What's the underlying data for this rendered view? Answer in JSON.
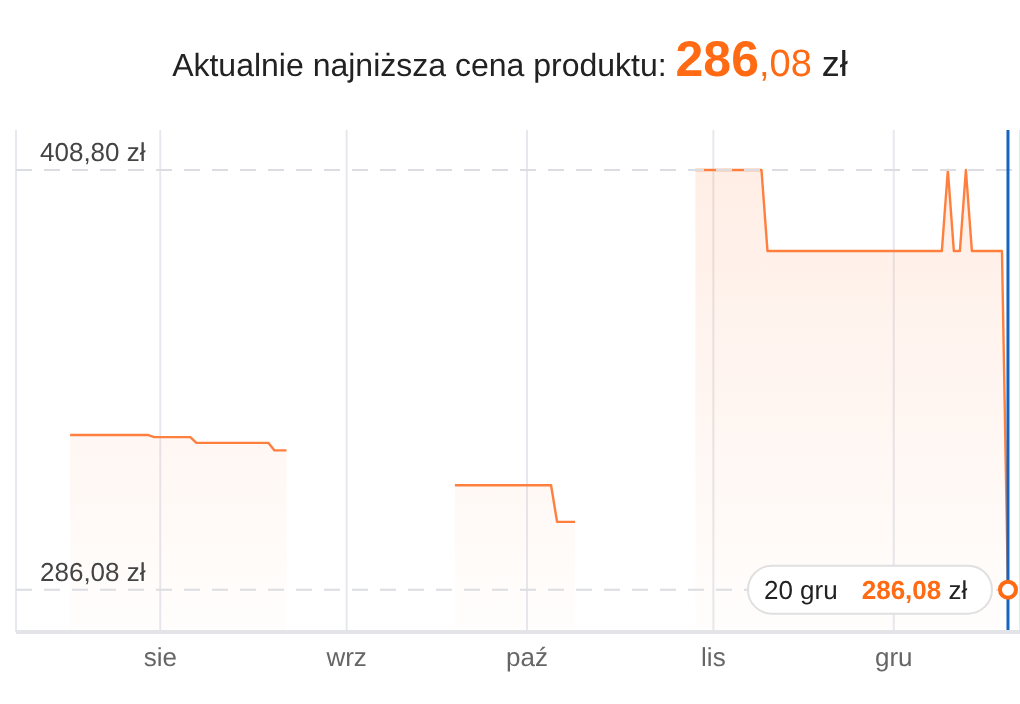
{
  "chart_data": {
    "type": "area",
    "title": "Aktualnie najniższa cena produktu: 286,08 zł",
    "categories": [
      null,
      null,
      null,
      null,
      null,
      null,
      null,
      null,
      null,
      null,
      null,
      null,
      null,
      null,
      null,
      null,
      null,
      null,
      null,
      null,
      null,
      null,
      null,
      null,
      "sie",
      null,
      null,
      null,
      null,
      null,
      null,
      null,
      null,
      null,
      null,
      null,
      null,
      null,
      null,
      null,
      null,
      null,
      null,
      null,
      null,
      null,
      null,
      null,
      null,
      null,
      null,
      null,
      null,
      null,
      null,
      "wrz",
      null,
      null,
      null,
      null,
      null,
      null,
      null,
      null,
      null,
      null,
      null,
      null,
      null,
      null,
      null,
      null,
      null,
      null,
      null,
      null,
      null,
      null,
      null,
      null,
      null,
      null,
      null,
      null,
      null,
      "paź",
      null,
      null,
      null,
      null,
      null,
      null,
      null,
      null,
      null,
      null,
      null,
      null,
      null,
      null,
      null,
      null,
      null,
      null,
      null,
      null,
      null,
      null,
      null,
      null,
      null,
      null,
      null,
      null,
      null,
      null,
      "lis",
      null,
      null,
      null,
      null,
      null,
      null,
      null,
      null,
      null,
      null,
      null,
      null,
      null,
      null,
      null,
      null,
      null,
      null,
      null,
      null,
      null,
      null,
      null,
      null,
      null,
      null,
      null,
      null,
      null,
      "gru",
      null,
      null,
      null,
      null,
      null,
      null,
      null,
      null,
      null,
      null,
      null,
      null,
      null,
      null,
      null,
      null,
      null,
      null,
      null,
      null,
      null
    ],
    "series": [
      {
        "color": "#ff7f3f",
        "values": [
          null,
          null,
          null,
          null,
          null,
          null,
          null,
          null,
          null,
          331.3,
          331.3,
          331.3,
          331.3,
          331.3,
          331.3,
          331.3,
          331.3,
          331.3,
          331.3,
          331.3,
          331.3,
          331.3,
          331.3,
          330.7,
          330.7,
          330.7,
          330.7,
          330.7,
          330.7,
          330.7,
          329.0,
          329.0,
          329.0,
          329.0,
          329.0,
          329.0,
          329.0,
          329.0,
          329.0,
          329.0,
          329.0,
          329.0,
          329.0,
          326.8,
          326.8,
          326.8,
          null,
          null,
          null,
          null,
          null,
          null,
          null,
          null,
          null,
          null,
          null,
          null,
          null,
          null,
          null,
          null,
          null,
          null,
          null,
          null,
          null,
          null,
          null,
          null,
          null,
          null,
          null,
          316.6,
          316.6,
          316.6,
          316.6,
          316.6,
          316.6,
          316.6,
          316.6,
          316.6,
          316.6,
          316.6,
          316.6,
          316.6,
          316.6,
          316.6,
          316.6,
          316.6,
          305.9,
          305.9,
          305.9,
          305.9,
          null,
          null,
          null,
          null,
          null,
          null,
          null,
          null,
          null,
          null,
          null,
          null,
          null,
          null,
          null,
          null,
          null,
          null,
          null,
          408.8,
          408.8,
          408.8,
          408.8,
          408.8,
          408.8,
          408.8,
          408.8,
          408.8,
          408.8,
          408.8,
          408.8,
          385.1,
          385.1,
          385.1,
          385.1,
          385.1,
          385.1,
          385.1,
          385.1,
          385.1,
          385.1,
          385.1,
          385.1,
          385.1,
          385.1,
          385.1,
          385.1,
          385.1,
          385.1,
          385.1,
          385.1,
          385.1,
          385.1,
          385.1,
          385.1,
          385.1,
          385.1,
          385.1,
          385.1,
          385.1,
          385.1,
          408.8,
          385.1,
          385.1,
          408.8,
          385.1,
          385.1,
          385.1,
          385.1,
          385.1,
          385.1,
          286.08,
          null,
          null
        ]
      }
    ],
    "ylim": [
      273.7,
      420.5
    ],
    "yticks": [
      {
        "value": 286.08,
        "label": "286,08 zł"
      },
      {
        "value": 408.8,
        "label": "408,80 zł"
      }
    ],
    "grid": true,
    "marker": "none",
    "line_style": "solid",
    "annotations": [
      "20 gru 286,08 zł"
    ]
  }
}
